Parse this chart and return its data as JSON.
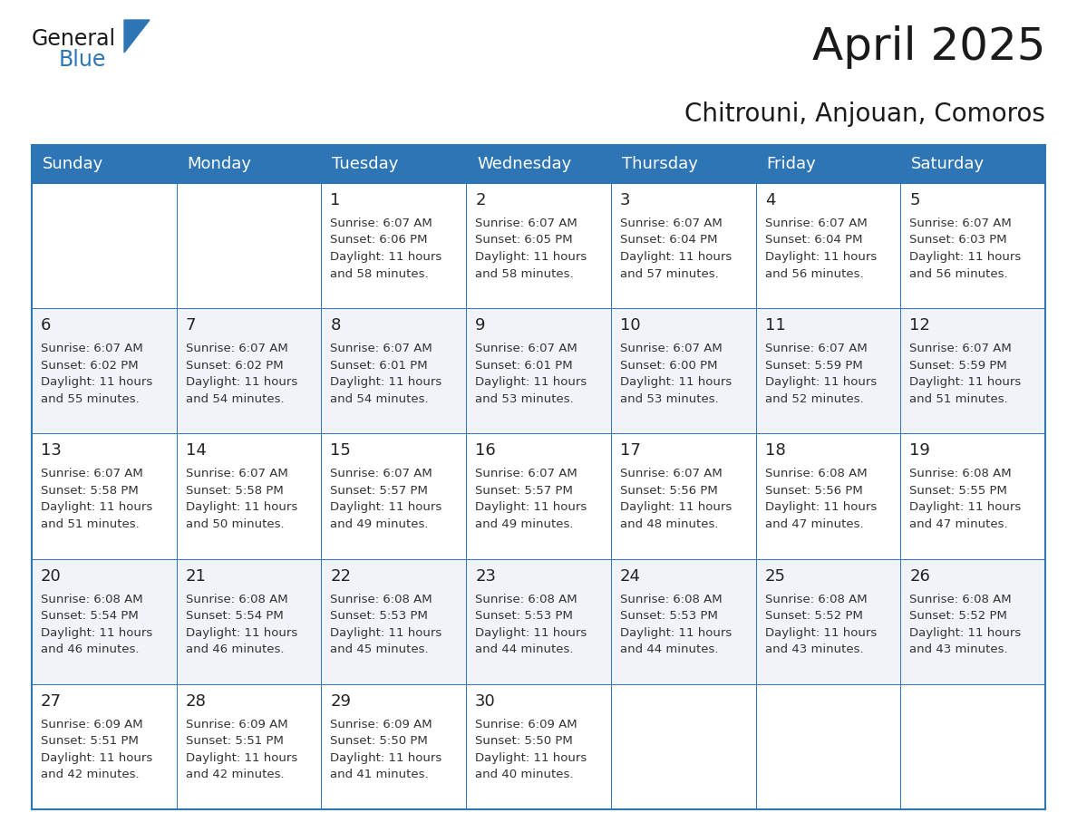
{
  "title": "April 2025",
  "subtitle": "Chitrouni, Anjouan, Comoros",
  "header_bg": "#2E75B6",
  "header_text_color": "#FFFFFF",
  "cell_bg_odd": "#FFFFFF",
  "cell_bg_even": "#F0F4F8",
  "border_color": "#2E75B6",
  "text_color": "#333333",
  "day_num_color": "#222222",
  "day_names": [
    "Sunday",
    "Monday",
    "Tuesday",
    "Wednesday",
    "Thursday",
    "Friday",
    "Saturday"
  ],
  "days_data": [
    {
      "day": 1,
      "col": 2,
      "row": 0,
      "sunrise": "6:07 AM",
      "sunset": "6:06 PM",
      "daylight_line1": "Daylight: 11 hours",
      "daylight_line2": "and 58 minutes."
    },
    {
      "day": 2,
      "col": 3,
      "row": 0,
      "sunrise": "6:07 AM",
      "sunset": "6:05 PM",
      "daylight_line1": "Daylight: 11 hours",
      "daylight_line2": "and 58 minutes."
    },
    {
      "day": 3,
      "col": 4,
      "row": 0,
      "sunrise": "6:07 AM",
      "sunset": "6:04 PM",
      "daylight_line1": "Daylight: 11 hours",
      "daylight_line2": "and 57 minutes."
    },
    {
      "day": 4,
      "col": 5,
      "row": 0,
      "sunrise": "6:07 AM",
      "sunset": "6:04 PM",
      "daylight_line1": "Daylight: 11 hours",
      "daylight_line2": "and 56 minutes."
    },
    {
      "day": 5,
      "col": 6,
      "row": 0,
      "sunrise": "6:07 AM",
      "sunset": "6:03 PM",
      "daylight_line1": "Daylight: 11 hours",
      "daylight_line2": "and 56 minutes."
    },
    {
      "day": 6,
      "col": 0,
      "row": 1,
      "sunrise": "6:07 AM",
      "sunset": "6:02 PM",
      "daylight_line1": "Daylight: 11 hours",
      "daylight_line2": "and 55 minutes."
    },
    {
      "day": 7,
      "col": 1,
      "row": 1,
      "sunrise": "6:07 AM",
      "sunset": "6:02 PM",
      "daylight_line1": "Daylight: 11 hours",
      "daylight_line2": "and 54 minutes."
    },
    {
      "day": 8,
      "col": 2,
      "row": 1,
      "sunrise": "6:07 AM",
      "sunset": "6:01 PM",
      "daylight_line1": "Daylight: 11 hours",
      "daylight_line2": "and 54 minutes."
    },
    {
      "day": 9,
      "col": 3,
      "row": 1,
      "sunrise": "6:07 AM",
      "sunset": "6:01 PM",
      "daylight_line1": "Daylight: 11 hours",
      "daylight_line2": "and 53 minutes."
    },
    {
      "day": 10,
      "col": 4,
      "row": 1,
      "sunrise": "6:07 AM",
      "sunset": "6:00 PM",
      "daylight_line1": "Daylight: 11 hours",
      "daylight_line2": "and 53 minutes."
    },
    {
      "day": 11,
      "col": 5,
      "row": 1,
      "sunrise": "6:07 AM",
      "sunset": "5:59 PM",
      "daylight_line1": "Daylight: 11 hours",
      "daylight_line2": "and 52 minutes."
    },
    {
      "day": 12,
      "col": 6,
      "row": 1,
      "sunrise": "6:07 AM",
      "sunset": "5:59 PM",
      "daylight_line1": "Daylight: 11 hours",
      "daylight_line2": "and 51 minutes."
    },
    {
      "day": 13,
      "col": 0,
      "row": 2,
      "sunrise": "6:07 AM",
      "sunset": "5:58 PM",
      "daylight_line1": "Daylight: 11 hours",
      "daylight_line2": "and 51 minutes."
    },
    {
      "day": 14,
      "col": 1,
      "row": 2,
      "sunrise": "6:07 AM",
      "sunset": "5:58 PM",
      "daylight_line1": "Daylight: 11 hours",
      "daylight_line2": "and 50 minutes."
    },
    {
      "day": 15,
      "col": 2,
      "row": 2,
      "sunrise": "6:07 AM",
      "sunset": "5:57 PM",
      "daylight_line1": "Daylight: 11 hours",
      "daylight_line2": "and 49 minutes."
    },
    {
      "day": 16,
      "col": 3,
      "row": 2,
      "sunrise": "6:07 AM",
      "sunset": "5:57 PM",
      "daylight_line1": "Daylight: 11 hours",
      "daylight_line2": "and 49 minutes."
    },
    {
      "day": 17,
      "col": 4,
      "row": 2,
      "sunrise": "6:07 AM",
      "sunset": "5:56 PM",
      "daylight_line1": "Daylight: 11 hours",
      "daylight_line2": "and 48 minutes."
    },
    {
      "day": 18,
      "col": 5,
      "row": 2,
      "sunrise": "6:08 AM",
      "sunset": "5:56 PM",
      "daylight_line1": "Daylight: 11 hours",
      "daylight_line2": "and 47 minutes."
    },
    {
      "day": 19,
      "col": 6,
      "row": 2,
      "sunrise": "6:08 AM",
      "sunset": "5:55 PM",
      "daylight_line1": "Daylight: 11 hours",
      "daylight_line2": "and 47 minutes."
    },
    {
      "day": 20,
      "col": 0,
      "row": 3,
      "sunrise": "6:08 AM",
      "sunset": "5:54 PM",
      "daylight_line1": "Daylight: 11 hours",
      "daylight_line2": "and 46 minutes."
    },
    {
      "day": 21,
      "col": 1,
      "row": 3,
      "sunrise": "6:08 AM",
      "sunset": "5:54 PM",
      "daylight_line1": "Daylight: 11 hours",
      "daylight_line2": "and 46 minutes."
    },
    {
      "day": 22,
      "col": 2,
      "row": 3,
      "sunrise": "6:08 AM",
      "sunset": "5:53 PM",
      "daylight_line1": "Daylight: 11 hours",
      "daylight_line2": "and 45 minutes."
    },
    {
      "day": 23,
      "col": 3,
      "row": 3,
      "sunrise": "6:08 AM",
      "sunset": "5:53 PM",
      "daylight_line1": "Daylight: 11 hours",
      "daylight_line2": "and 44 minutes."
    },
    {
      "day": 24,
      "col": 4,
      "row": 3,
      "sunrise": "6:08 AM",
      "sunset": "5:53 PM",
      "daylight_line1": "Daylight: 11 hours",
      "daylight_line2": "and 44 minutes."
    },
    {
      "day": 25,
      "col": 5,
      "row": 3,
      "sunrise": "6:08 AM",
      "sunset": "5:52 PM",
      "daylight_line1": "Daylight: 11 hours",
      "daylight_line2": "and 43 minutes."
    },
    {
      "day": 26,
      "col": 6,
      "row": 3,
      "sunrise": "6:08 AM",
      "sunset": "5:52 PM",
      "daylight_line1": "Daylight: 11 hours",
      "daylight_line2": "and 43 minutes."
    },
    {
      "day": 27,
      "col": 0,
      "row": 4,
      "sunrise": "6:09 AM",
      "sunset": "5:51 PM",
      "daylight_line1": "Daylight: 11 hours",
      "daylight_line2": "and 42 minutes."
    },
    {
      "day": 28,
      "col": 1,
      "row": 4,
      "sunrise": "6:09 AM",
      "sunset": "5:51 PM",
      "daylight_line1": "Daylight: 11 hours",
      "daylight_line2": "and 42 minutes."
    },
    {
      "day": 29,
      "col": 2,
      "row": 4,
      "sunrise": "6:09 AM",
      "sunset": "5:50 PM",
      "daylight_line1": "Daylight: 11 hours",
      "daylight_line2": "and 41 minutes."
    },
    {
      "day": 30,
      "col": 3,
      "row": 4,
      "sunrise": "6:09 AM",
      "sunset": "5:50 PM",
      "daylight_line1": "Daylight: 11 hours",
      "daylight_line2": "and 40 minutes."
    }
  ],
  "num_rows": 5,
  "logo_text_general": "General",
  "logo_text_blue": "Blue",
  "logo_triangle_color": "#2E75B6",
  "title_fontsize": 36,
  "subtitle_fontsize": 20,
  "header_fontsize": 13,
  "day_num_fontsize": 13,
  "cell_fontsize": 9.5
}
